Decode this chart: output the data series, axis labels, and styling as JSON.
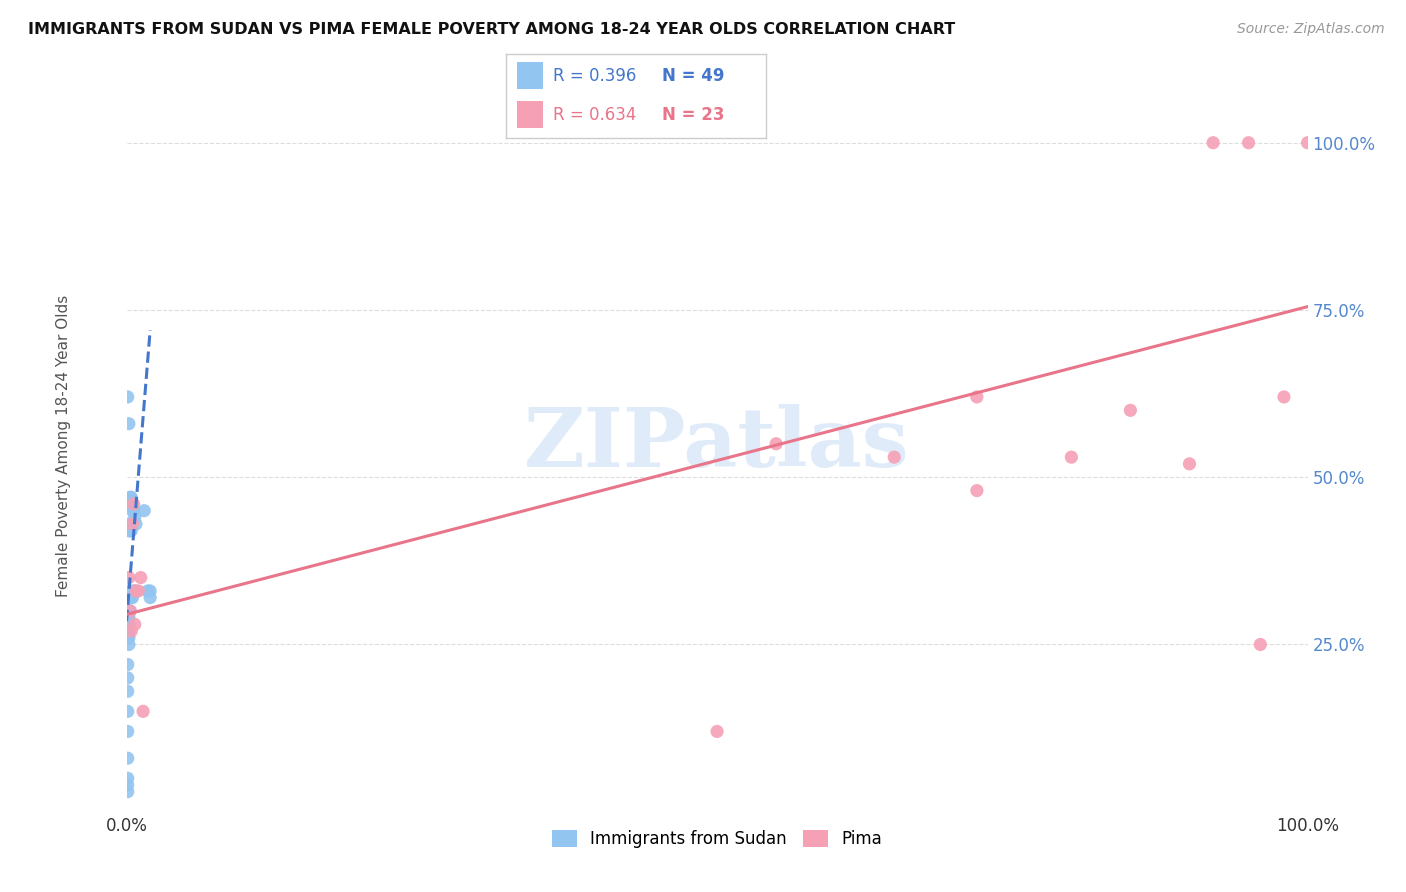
{
  "title": "IMMIGRANTS FROM SUDAN VS PIMA FEMALE POVERTY AMONG 18-24 YEAR OLDS CORRELATION CHART",
  "source": "Source: ZipAtlas.com",
  "ylabel": "Female Poverty Among 18-24 Year Olds",
  "legend_blue_r": "R = 0.396",
  "legend_blue_n": "N = 49",
  "legend_pink_r": "R = 0.634",
  "legend_pink_n": "N = 23",
  "legend_label_blue": "Immigrants from Sudan",
  "legend_label_pink": "Pima",
  "blue_color": "#92C5F0",
  "pink_color": "#F5A0B5",
  "blue_r_color": "#4477CC",
  "pink_r_color": "#E8758A",
  "tick_color": "#5588CC",
  "watermark": "ZIPatlas",
  "blue_scatter_x": [
    0.001,
    0.002,
    0.003,
    0.004,
    0.005,
    0.006,
    0.007,
    0.008,
    0.001,
    0.002,
    0.003,
    0.004,
    0.005,
    0.006,
    0.007,
    0.002,
    0.003,
    0.004,
    0.005,
    0.001,
    0.002,
    0.003,
    0.001,
    0.002,
    0.003,
    0.001,
    0.002,
    0.001,
    0.002,
    0.001,
    0.002,
    0.001,
    0.002,
    0.001,
    0.001,
    0.002,
    0.001,
    0.001,
    0.001,
    0.001,
    0.001,
    0.001,
    0.001,
    0.015,
    0.018,
    0.02,
    0.001,
    0.001,
    0.02
  ],
  "blue_scatter_y": [
    0.62,
    0.58,
    0.47,
    0.47,
    0.46,
    0.45,
    0.44,
    0.43,
    0.43,
    0.42,
    0.42,
    0.42,
    0.45,
    0.33,
    0.33,
    0.33,
    0.33,
    0.32,
    0.32,
    0.32,
    0.32,
    0.3,
    0.3,
    0.3,
    0.3,
    0.29,
    0.29,
    0.28,
    0.28,
    0.28,
    0.27,
    0.27,
    0.26,
    0.26,
    0.26,
    0.25,
    0.22,
    0.2,
    0.18,
    0.15,
    0.12,
    0.08,
    0.05,
    0.45,
    0.33,
    0.33,
    0.04,
    0.03,
    0.32
  ],
  "pink_scatter_x": [
    0.002,
    0.003,
    0.005,
    0.006,
    0.007,
    0.01,
    0.012,
    0.014,
    0.5,
    0.55,
    0.65,
    0.72,
    0.72,
    0.8,
    0.85,
    0.9,
    0.92,
    0.95,
    0.96,
    0.98,
    1.0,
    0.004,
    0.008
  ],
  "pink_scatter_y": [
    0.35,
    0.3,
    0.43,
    0.46,
    0.28,
    0.33,
    0.35,
    0.15,
    0.12,
    0.55,
    0.53,
    0.62,
    0.48,
    0.53,
    0.6,
    0.52,
    1.0,
    1.0,
    0.25,
    0.62,
    1.0,
    0.27,
    0.33
  ],
  "blue_trend_x": [
    0.0,
    0.02
  ],
  "blue_trend_y": [
    0.285,
    0.72
  ],
  "pink_trend_x": [
    0.0,
    1.0
  ],
  "pink_trend_y": [
    0.295,
    0.755
  ],
  "xlim": [
    0.0,
    1.0
  ],
  "ylim": [
    0.0,
    1.1
  ],
  "ytick_vals": [
    0.0,
    0.25,
    0.5,
    0.75,
    1.0
  ],
  "ytick_labels": [
    "",
    "25.0%",
    "50.0%",
    "75.0%",
    "100.0%"
  ],
  "xtick_vals": [
    0.0,
    1.0
  ],
  "xtick_labels": [
    "0.0%",
    "100.0%"
  ],
  "background_color": "#ffffff",
  "grid_color": "#dddddd"
}
